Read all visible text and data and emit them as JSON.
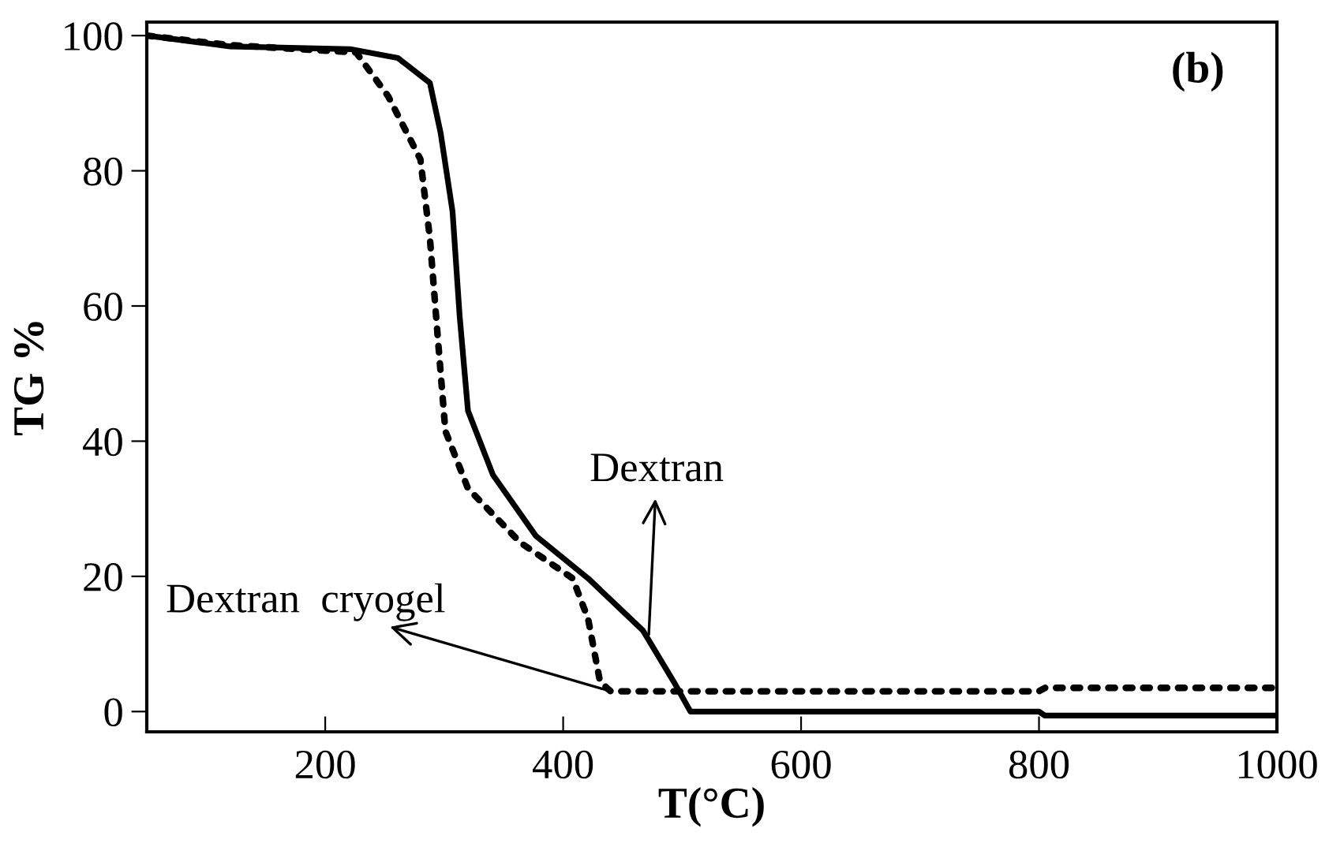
{
  "chart_data": {
    "type": "line",
    "xlabel": "T(°C)",
    "ylabel": "TG %",
    "xlim": [
      50,
      1000
    ],
    "ylim": [
      -3,
      102
    ],
    "xticks": [
      200,
      400,
      600,
      800,
      1000
    ],
    "yticks": [
      0,
      20,
      40,
      60,
      80,
      100
    ],
    "grid": false,
    "series": [
      {
        "color": "#000000",
        "line_style": "solid",
        "x": [
          50,
          120,
          221,
          261,
          288,
          297,
          307,
          313,
          320,
          341,
          377,
          421,
          467,
          493,
          507,
          800,
          805,
          1000
        ],
        "values": [
          100,
          98.4,
          98,
          96.7,
          93,
          85.6,
          74,
          58.5,
          44.5,
          35,
          26,
          19.7,
          12,
          4.4,
          0,
          0,
          -0.6,
          -0.6
        ]
      },
      {
        "color": "#000000",
        "line_style": "dotted",
        "x": [
          50,
          120,
          226,
          253,
          280,
          288,
          295,
          301,
          320,
          364,
          408,
          421,
          431,
          440,
          800,
          805,
          1000
        ],
        "values": [
          100,
          98.6,
          97.5,
          91,
          81.7,
          70,
          54.5,
          41.5,
          33,
          25,
          19.7,
          13.7,
          4.4,
          3,
          3,
          3.5,
          3.5
        ]
      }
    ],
    "annotations": [
      {
        "text": "Dextran",
        "x": 472,
        "y": 11.4
      },
      {
        "text": "Dextran  cryogel",
        "x": 440,
        "y": 3
      },
      "(b)"
    ]
  }
}
